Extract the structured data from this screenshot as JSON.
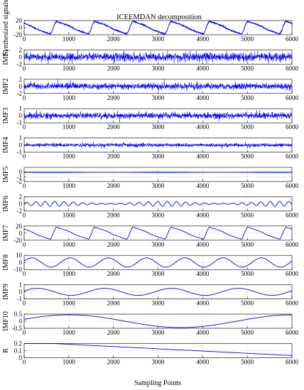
{
  "chart_data": {
    "type": "line",
    "title": "ICEEMDAN decomposition",
    "xlabel": "Sampling Points",
    "xlim": [
      0,
      6000
    ],
    "xticks": [
      0,
      1000,
      2000,
      3000,
      4000,
      5000,
      6000
    ],
    "grid": true,
    "line_color": "#0000ff",
    "panels": [
      {
        "ylabel": "Synthesized signals",
        "ylim": [
          -20,
          20
        ],
        "yticks": [
          20,
          0,
          -20
        ],
        "kind": "periodic",
        "period": 857,
        "amp": 18,
        "noise": 1.5,
        "smooth": false
      },
      {
        "ylabel": "IMF1",
        "ylim": [
          -2,
          2
        ],
        "yticks": [
          2,
          0,
          -2
        ],
        "kind": "noise",
        "amp": 1.2,
        "noise": 0,
        "smooth": false
      },
      {
        "ylabel": "IMF2",
        "ylim": [
          -2,
          2
        ],
        "yticks": [
          2,
          0,
          -2
        ],
        "kind": "noise",
        "amp": 0.9,
        "noise": 0,
        "smooth": false
      },
      {
        "ylabel": "IMF3",
        "ylim": [
          -1,
          1
        ],
        "yticks": [
          1,
          0,
          -1
        ],
        "kind": "noise",
        "amp": 0.45,
        "noise": 0,
        "smooth": false
      },
      {
        "ylabel": "IMF4",
        "ylim": [
          -1,
          1
        ],
        "yticks": [
          1,
          0,
          -1
        ],
        "kind": "noise",
        "amp": 0.25,
        "noise": 0,
        "smooth": false
      },
      {
        "ylabel": "IMF5",
        "ylim": [
          -2,
          1
        ],
        "yticks": [
          0,
          -1,
          -2
        ],
        "kind": "oscillation",
        "period": 45,
        "amp": 0.12,
        "noise": 0,
        "smooth": false
      },
      {
        "ylabel": "IMF6",
        "ylim": [
          -2,
          2
        ],
        "yticks": [
          2,
          0,
          -2
        ],
        "kind": "oscillation",
        "period": 210,
        "amp": 0.7,
        "noise": 0,
        "smooth": true
      },
      {
        "ylabel": "IMF7",
        "ylim": [
          -20,
          20
        ],
        "yticks": [
          20,
          0,
          -20
        ],
        "kind": "periodic",
        "period": 857,
        "amp": 17,
        "noise": 0,
        "smooth": true
      },
      {
        "ylabel": "IMF8",
        "ylim": [
          -10,
          10
        ],
        "yticks": [
          10,
          0,
          -10
        ],
        "kind": "sine",
        "period": 857,
        "amp": 6.5,
        "noise": 0,
        "smooth": true
      },
      {
        "ylabel": "IMF9",
        "ylim": [
          -1,
          1
        ],
        "yticks": [
          1,
          0,
          -1
        ],
        "kind": "sine",
        "period": 1500,
        "amp": 0.5,
        "noise": 0,
        "smooth": true
      },
      {
        "ylabel": "IMF10",
        "ylim": [
          -0.5,
          0.5
        ],
        "yticks": [
          0.5,
          0,
          -0.5
        ],
        "kind": "sine",
        "period": 5000,
        "amp": 0.45,
        "noise": 0,
        "smooth": true
      },
      {
        "ylabel": "R",
        "ylim": [
          0,
          0.2
        ],
        "yticks": [
          0.2,
          0.1,
          0
        ],
        "kind": "trend",
        "start": 0.22,
        "end": 0.03,
        "smooth": true
      }
    ]
  }
}
